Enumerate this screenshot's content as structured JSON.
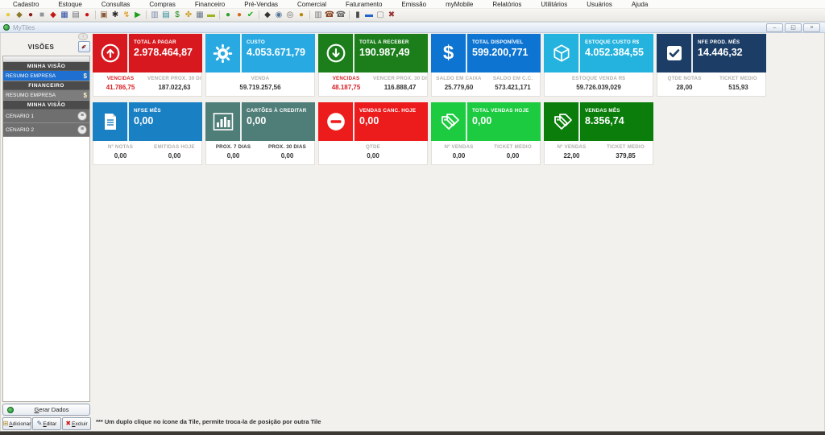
{
  "menu_bar": {
    "items": [
      "Cadastro",
      "Estoque",
      "Consultas",
      "Compras",
      "Financeiro",
      "Pré-Vendas",
      "Comercial",
      "Faturamento",
      "Emissão",
      "myMobile",
      "Relatórios",
      "Utilitários",
      "Usuários",
      "Ajuda"
    ]
  },
  "toolbar": {
    "icons": [
      {
        "name": "lamp-icon",
        "glyph": "●",
        "color": "#e6c83c"
      },
      {
        "name": "key-icon",
        "glyph": "◆",
        "color": "#8a7a2a"
      },
      {
        "name": "user-icon",
        "glyph": "●",
        "color": "#8b1a1a"
      },
      {
        "name": "building-icon",
        "glyph": "■",
        "color": "#8f949c"
      },
      {
        "name": "map-pin-icon",
        "glyph": "◆",
        "color": "#c01818"
      },
      {
        "name": "grid-map-icon",
        "glyph": "▦",
        "color": "#2a4aa0"
      },
      {
        "name": "document-edit-icon",
        "glyph": "▤",
        "color": "#6b6f76"
      },
      {
        "name": "record-icon",
        "glyph": "●",
        "color": "#cc1111"
      },
      {
        "name": "cart-icon",
        "glyph": "▣",
        "color": "#8a5a3a",
        "sep": true
      },
      {
        "name": "gear-star-icon",
        "glyph": "✱",
        "color": "#2b2b2b"
      },
      {
        "name": "bolt-icon",
        "glyph": "↯",
        "color": "#e08a00"
      },
      {
        "name": "play-icon",
        "glyph": "▶",
        "color": "#1a9e1a"
      },
      {
        "name": "monitor-icon",
        "glyph": "▥",
        "color": "#7788aa",
        "sep": true
      },
      {
        "name": "screen-icon",
        "glyph": "▤",
        "color": "#22889a"
      },
      {
        "name": "dollar-coin-icon",
        "glyph": "$",
        "color": "#1a8a1a"
      },
      {
        "name": "hands-icon",
        "glyph": "✤",
        "color": "#c9a227"
      },
      {
        "name": "calculator-icon",
        "glyph": "▦",
        "color": "#667788"
      },
      {
        "name": "banknote-icon",
        "glyph": "▬",
        "color": "#9ab520"
      },
      {
        "name": "user-green-icon",
        "glyph": "●",
        "color": "#2aa02a",
        "sep": true
      },
      {
        "name": "user-orange-icon",
        "glyph": "●",
        "color": "#d2691e"
      },
      {
        "name": "check-icon",
        "glyph": "✔",
        "color": "#1fae1f"
      },
      {
        "name": "bird-icon",
        "glyph": "◆",
        "color": "#333333",
        "sep": true
      },
      {
        "name": "globe-gray-icon",
        "glyph": "◉",
        "color": "#557799"
      },
      {
        "name": "search-icon",
        "glyph": "◎",
        "color": "#666666"
      },
      {
        "name": "coins-icon",
        "glyph": "●",
        "color": "#b8860b"
      },
      {
        "name": "printer-icon",
        "glyph": "▥",
        "color": "#777777",
        "sep": true
      },
      {
        "name": "phone-support-icon",
        "glyph": "☎",
        "color": "#884422"
      },
      {
        "name": "phone-support2-icon",
        "glyph": "☎",
        "color": "#666666"
      },
      {
        "name": "books-icon",
        "glyph": "▮",
        "color": "#494949",
        "sep": true
      },
      {
        "name": "card-blue-icon",
        "glyph": "▬",
        "color": "#2266cc"
      },
      {
        "name": "doc-icon",
        "glyph": "▢",
        "color": "#888888"
      },
      {
        "name": "tools-icon",
        "glyph": "✖",
        "color": "#993333"
      }
    ]
  },
  "mdi_window": {
    "title": "MyTiles",
    "controls": [
      {
        "name": "minimize-button",
        "glyph": "–"
      },
      {
        "name": "restore-button",
        "glyph": "◱"
      },
      {
        "name": "close-button",
        "glyph": "×"
      }
    ]
  },
  "sidebar": {
    "panel_title": "VISÕES",
    "items": [
      {
        "type": "group",
        "label": "MINHA VISÃO"
      },
      {
        "type": "item",
        "label": "RESUMO EMPRESA",
        "icon": "dollar-icon",
        "selected": true
      },
      {
        "type": "group",
        "label": "FINANCEIRO"
      },
      {
        "type": "item",
        "label": "RESUMO EMPRESA",
        "icon": "dollar-icon",
        "selected": false
      },
      {
        "type": "group",
        "label": "MINHA VISÃO"
      },
      {
        "type": "item",
        "label": "CENARIO 1",
        "icon": "scenario-icon",
        "selected": false,
        "tall": true
      },
      {
        "type": "item",
        "label": "CENARIO 2",
        "icon": "scenario-icon",
        "selected": false,
        "tall": true
      }
    ],
    "generate_button_label": "Gerar Dados",
    "actions": [
      {
        "name": "add-button",
        "label": "Adicionar",
        "icon": "add-page-icon"
      },
      {
        "name": "edit-button",
        "label": "Editar",
        "icon": "edit-form-icon"
      },
      {
        "name": "delete-button",
        "label": "Excluir",
        "icon": "delete-x-icon"
      }
    ]
  },
  "tiles": {
    "rows": [
      [
        {
          "label": "TOTAL A PAGAR",
          "value": "2.978.464,87",
          "color": "#d7191f",
          "icon": "arrow-up-circle-icon",
          "footer": [
            {
              "label": "VENCIDAS",
              "value": "41.786,75",
              "label_style": "red",
              "value_style": "red"
            },
            {
              "label": "VENCER PROX. 30 DIAS",
              "value": "187.022,63"
            }
          ]
        },
        {
          "label": "CUSTO",
          "value": "4.053.671,79",
          "color": "#29a9e1",
          "icon": "gear-icon",
          "footer": [
            {
              "label": "VENDA",
              "value": "59.719.257,56"
            }
          ]
        },
        {
          "label": "TOTAL A RECEBER",
          "value": "190.987,49",
          "color": "#1b7e1b",
          "icon": "arrow-down-circle-icon",
          "footer": [
            {
              "label": "VENCIDAS",
              "value": "48.187,75",
              "label_style": "red",
              "value_style": "red"
            },
            {
              "label": "VENCER PROX. 30 DIAS",
              "value": "116.888,47"
            }
          ]
        },
        {
          "label": "TOTAL DISPONÍVEL",
          "value": "599.200,771",
          "color": "#0d74d1",
          "icon": "dollar-icon",
          "footer": [
            {
              "label": "SALDO EM CAIXA",
              "value": "25.779,60"
            },
            {
              "label": "SALDO EM C.C.",
              "value": "573.421,171"
            }
          ]
        },
        {
          "label": "ESTOQUE CUSTO R$",
          "value": "4.052.384,55",
          "color": "#24b3de",
          "icon": "cube-icon",
          "footer": [
            {
              "label": "ESTOQUE VENDA R$",
              "value": "59.726.039,029"
            }
          ]
        },
        {
          "label": "NFE PROD. MÊS",
          "value": "14.446,32",
          "color": "#1c3e66",
          "icon": "check-square-icon",
          "footer": [
            {
              "label": "QTDE NOTAS",
              "value": "28,00"
            },
            {
              "label": "TICKET MÉDIO",
              "value": "515,93"
            }
          ]
        }
      ],
      [
        {
          "label": "NFSE MÊS",
          "value": "0,00",
          "color": "#1a80c4",
          "icon": "document-icon",
          "footer": [
            {
              "label": "Nº NOTAS",
              "value": "0,00"
            },
            {
              "label": "EMITIDAS HOJE",
              "value": "0,00"
            }
          ]
        },
        {
          "label": "CARTÕES À CREDITAR",
          "value": "0,00",
          "color": "#4f7d78",
          "icon": "bar-chart-icon",
          "footer": [
            {
              "label": "PROX. 7 DIAS",
              "value": "0,00",
              "label_style": "dark"
            },
            {
              "label": "PROX. 30 DIAS",
              "value": "0,00",
              "label_style": "dark"
            }
          ]
        },
        {
          "label": "VENDAS CANC. HOJE",
          "value": "0,00",
          "color": "#ed1c1c",
          "icon": "minus-circle-icon",
          "footer": [
            {
              "label": "QTDE",
              "value": "0,00"
            }
          ]
        },
        {
          "label": "TOTAL VENDAS HOJE",
          "value": "0,00",
          "color": "#1dcb40",
          "icon": "tags-icon",
          "footer": [
            {
              "label": "Nº VENDAS",
              "value": "0,00"
            },
            {
              "label": "TICKET MÉDIO",
              "value": "0,00"
            }
          ]
        },
        {
          "label": "VENDAS MÊS",
          "value": "8.356,74",
          "color": "#0b7d0b",
          "icon": "tags-icon",
          "footer": [
            {
              "label": "Nº VENDAS",
              "value": "22,00"
            },
            {
              "label": "TICKET MÉDIO",
              "value": "379,85"
            }
          ]
        }
      ]
    ]
  },
  "footer": {
    "note": "*** Um duplo clique no ícone da Tile, permite troca-la de posição por outra Tile"
  }
}
